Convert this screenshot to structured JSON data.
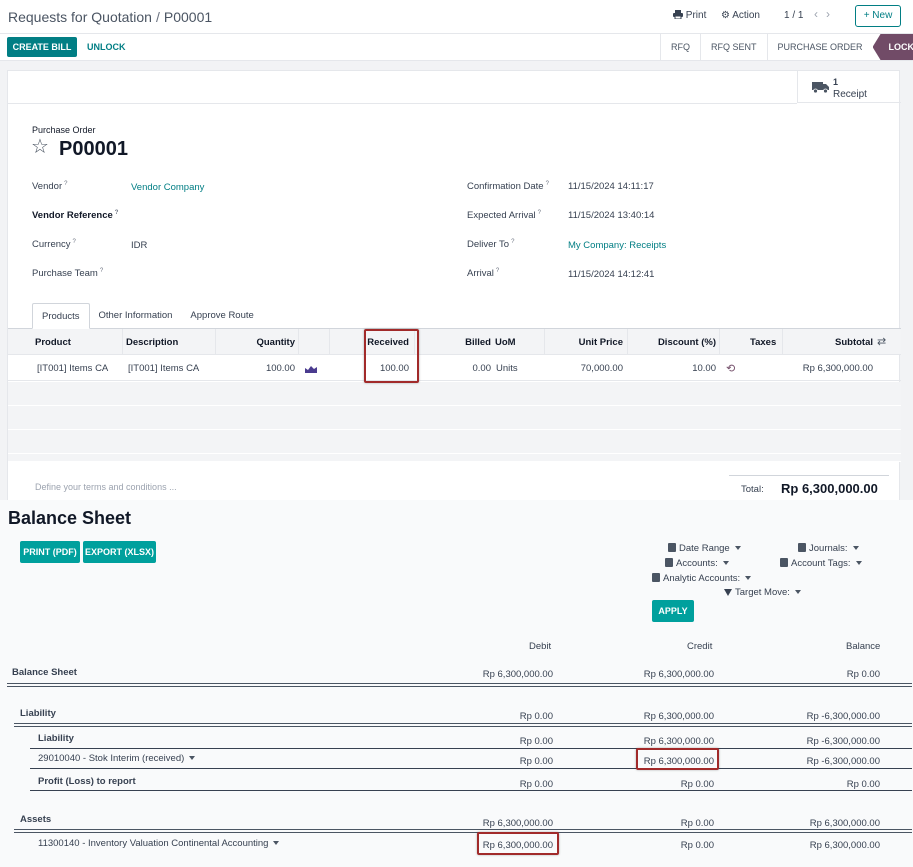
{
  "po": {
    "breadcrumb": {
      "parent": "Requests for Quotation",
      "sep": "/",
      "current": "P00001"
    },
    "toolbar": {
      "print": "Print",
      "action": "Action",
      "pager": "1 / 1",
      "new": "+ New"
    },
    "buttons": {
      "create_bill": "CREATE BILL",
      "unlock": "UNLOCK"
    },
    "stages": [
      "RFQ",
      "RFQ SENT",
      "PURCHASE ORDER",
      "LOCKED"
    ],
    "smart_button": {
      "count": "1",
      "label": "Receipt"
    },
    "header": {
      "label": "Purchase Order",
      "name": "P00001"
    },
    "fields_left": [
      {
        "label": "Vendor",
        "value": "Vendor Company"
      },
      {
        "label": "Vendor Reference",
        "value": ""
      },
      {
        "label": "Currency",
        "value": "IDR"
      },
      {
        "label": "Purchase Team",
        "value": ""
      }
    ],
    "fields_right": [
      {
        "label": "Confirmation Date",
        "value": "11/15/2024 14:11:17"
      },
      {
        "label": "Expected Arrival",
        "value": "11/15/2024 13:40:14"
      },
      {
        "label": "Deliver To",
        "value": "My Company: Receipts"
      },
      {
        "label": "Arrival",
        "value": "11/15/2024 14:12:41"
      }
    ],
    "tabs": [
      "Products",
      "Other Information",
      "Approve Route"
    ],
    "columns": [
      "Product",
      "Description",
      "Quantity",
      "Received",
      "Billed",
      "UoM",
      "Unit Price",
      "Discount (%)",
      "Taxes",
      "Subtotal"
    ],
    "line": {
      "product": "[IT001] Items CA",
      "description": "[IT001] Items CA",
      "quantity": "100.00",
      "received": "100.00",
      "billed": "0.00",
      "uom": "Units",
      "unit_price": "70,000.00",
      "discount": "10.00",
      "taxes": "",
      "subtotal": "Rp 6,300,000.00"
    },
    "terms_placeholder": "Define your terms and conditions ...",
    "total_label": "Total:",
    "total_value": "Rp 6,300,000.00"
  },
  "bs": {
    "title": "Balance Sheet",
    "buttons": {
      "print": "PRINT (PDF)",
      "export": "EXPORT (XLSX)",
      "apply": "APPLY"
    },
    "filters": {
      "date_range": "Date Range",
      "journals": "Journals:",
      "accounts": "Accounts:",
      "account_tags": "Account Tags:",
      "analytic_accounts": "Analytic Accounts:",
      "target_move": "Target Move:"
    },
    "columns": {
      "debit": "Debit",
      "credit": "Credit",
      "balance": "Balance"
    },
    "rows": [
      {
        "label": "Balance Sheet",
        "debit": "Rp 6,300,000.00",
        "credit": "Rp 6,300,000.00",
        "balance": "Rp 0.00"
      },
      {
        "label": "Liability",
        "debit": "Rp 0.00",
        "credit": "Rp 6,300,000.00",
        "balance": "Rp -6,300,000.00"
      },
      {
        "label": "Liability",
        "debit": "Rp 0.00",
        "credit": "Rp 6,300,000.00",
        "balance": "Rp -6,300,000.00"
      },
      {
        "label": "29010040 - Stok Interim (received)",
        "debit": "Rp 0.00",
        "credit": "Rp 6,300,000.00",
        "balance": "Rp -6,300,000.00"
      },
      {
        "label": "Profit (Loss) to report",
        "debit": "Rp 0.00",
        "credit": "Rp 0.00",
        "balance": "Rp 0.00"
      },
      {
        "label": "Assets",
        "debit": "Rp 6,300,000.00",
        "credit": "Rp 0.00",
        "balance": "Rp 6,300,000.00"
      },
      {
        "label": "11300140 - Inventory Valuation Continental Accounting",
        "debit": "Rp 6,300,000.00",
        "credit": "Rp 0.00",
        "balance": "Rp 6,300,000.00"
      }
    ]
  },
  "colors": {
    "teal": "#017e84",
    "teal_light": "#00a09d",
    "purple": "#714b67",
    "highlight": "#a12a2a"
  }
}
